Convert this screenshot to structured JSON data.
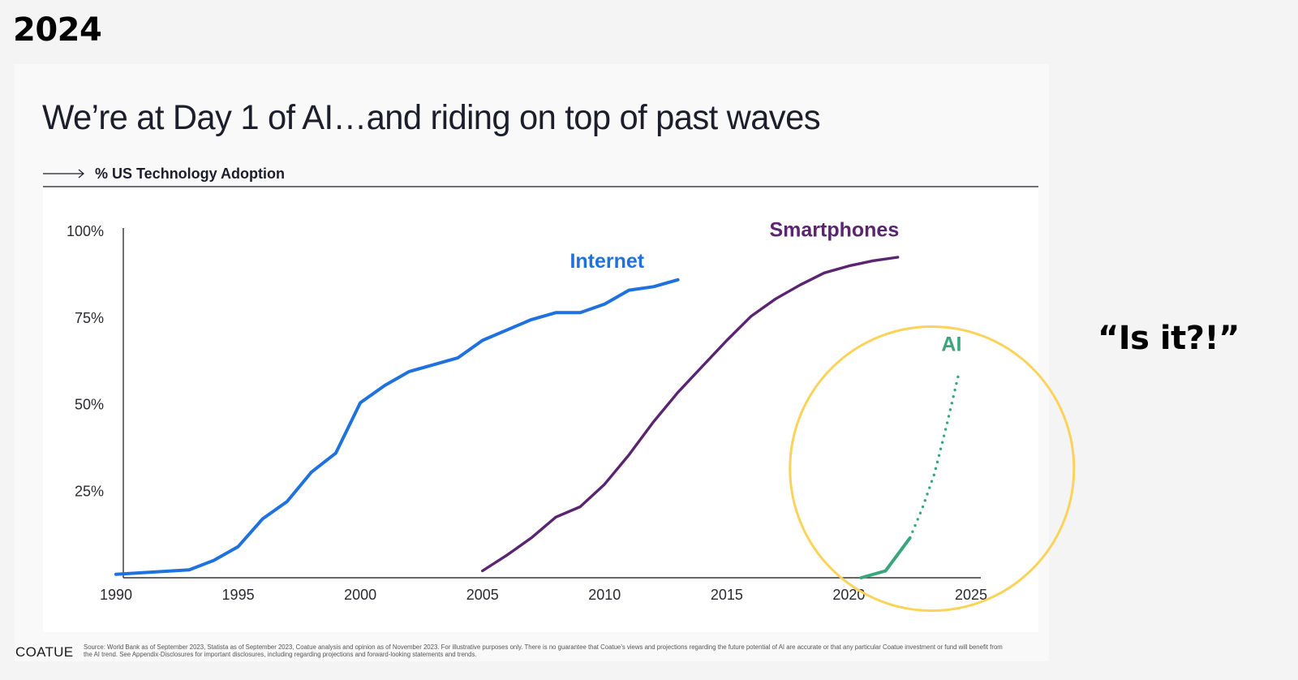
{
  "header": {
    "year_tag": "2024",
    "side_comment": "“Is it?!”"
  },
  "slide": {
    "title": "We’re at Day 1 of AI…and riding on top of past waves",
    "subhead_icon": "arrow-right-icon",
    "subhead": "% US Technology Adoption",
    "brand": "COATUE",
    "footnote_line1": "Source: World Bank as of September 2023, Statista as of September 2023, Coatue analysis and opinion as of November 2023. For illustrative purposes only. There is no guarantee that Coatue’s views and projections regarding the future potential of AI are accurate or that any particular Coatue investment or fund will benefit from",
    "footnote_line2": "the AI trend. See Appendix-Disclosures for important disclosures, including regarding projections and forward-looking statements and trends."
  },
  "colors": {
    "internet": "#1f72de",
    "smartphones": "#5a2470",
    "ai": "#3aa67b",
    "highlight_circle": "#fbd35a",
    "axis": "#333333"
  },
  "chart_data": {
    "type": "line",
    "title": "% US Technology Adoption",
    "xlabel": "",
    "ylabel": "",
    "xlim": [
      1990,
      2025
    ],
    "ylim": [
      0,
      100
    ],
    "x_ticks": [
      1990,
      1995,
      2000,
      2005,
      2010,
      2015,
      2020,
      2025
    ],
    "x_tick_labels": [
      "1990",
      "1995",
      "2000",
      "2005",
      "2010",
      "2015",
      "2020",
      "2025"
    ],
    "y_ticks": [
      25,
      50,
      75,
      100
    ],
    "y_tick_labels": [
      "25%",
      "50%",
      "75%",
      "100%"
    ],
    "grid": false,
    "legend": "inline labels",
    "series": [
      {
        "name": "Internet",
        "x": [
          1990,
          1993,
          1994,
          1995,
          1996,
          1997,
          1998,
          1999,
          2000,
          2001,
          2002,
          2003,
          2004,
          2005,
          2006,
          2007,
          2008,
          2009,
          2010,
          2011,
          2012,
          2013
        ],
        "values": [
          1,
          2.3,
          5,
          9,
          17,
          22,
          30.5,
          36,
          50.5,
          55.5,
          59.5,
          61.5,
          63.5,
          68.5,
          71.5,
          74.5,
          76.5,
          76.5,
          79,
          83,
          84,
          86
        ],
        "style": "solid"
      },
      {
        "name": "Smartphones",
        "x": [
          2005,
          2006,
          2007,
          2008,
          2009,
          2010,
          2011,
          2012,
          2013,
          2014,
          2015,
          2016,
          2017,
          2018,
          2019,
          2020,
          2021,
          2022
        ],
        "values": [
          2,
          6.5,
          11.5,
          17.5,
          20.5,
          27,
          35.5,
          45,
          53.5,
          61,
          68.5,
          75.5,
          80.5,
          84.5,
          88,
          90,
          91.5,
          92.5
        ],
        "style": "solid"
      },
      {
        "name": "AI",
        "x": [
          2020.5,
          2021.5,
          2022.5
        ],
        "values": [
          0,
          2,
          11.5
        ],
        "style": "solid",
        "projection": {
          "x": [
            2022.5,
            2023,
            2023.5,
            2024,
            2024.5
          ],
          "values": [
            11.5,
            20,
            30,
            44,
            59
          ],
          "style": "dotted"
        }
      }
    ],
    "annotations": [
      {
        "text": "Internet",
        "series": "Internet",
        "x": 2010.1,
        "y": 89.5
      },
      {
        "text": "Smartphones",
        "series": "Smartphones",
        "x": 2019.4,
        "y": 98.5
      },
      {
        "text": "AI",
        "series": "AI",
        "x": 2024.2,
        "y": 65.5
      },
      {
        "text": "highlight circle",
        "shape": "circle",
        "center_x": 2023.4,
        "center_y": 31.5
      }
    ]
  }
}
